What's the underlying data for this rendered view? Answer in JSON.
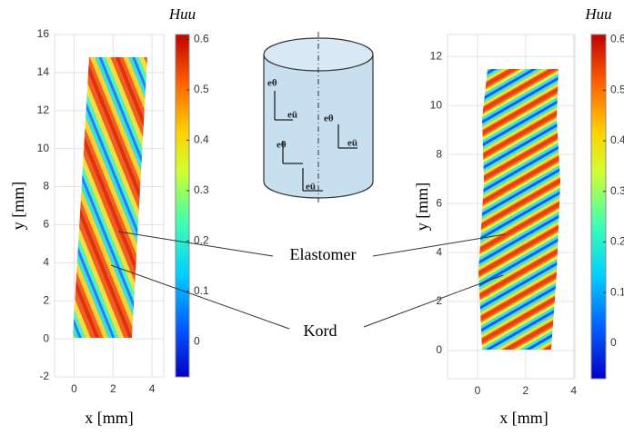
{
  "chart_data": [
    {
      "type": "heatmap",
      "xlabel": "x [mm]",
      "ylabel": "y [mm]",
      "xlim": [
        -1,
        4.6
      ],
      "xticks": [
        0,
        2,
        4
      ],
      "ylim": [
        -2,
        16
      ],
      "yticks": [
        -2,
        0,
        2,
        4,
        6,
        8,
        10,
        12,
        14,
        16
      ],
      "grid": true,
      "colorbar_label": "Huu",
      "clim": [
        -0.07,
        0.61
      ],
      "cticks": [
        0,
        0.1,
        0.2,
        0.3,
        0.4,
        0.5,
        0.6
      ]
    },
    {
      "type": "heatmap",
      "xlabel": "x [mm]",
      "ylabel": "y [mm]",
      "xlim": [
        -1.25,
        4.05
      ],
      "xticks": [
        0,
        2,
        4
      ],
      "ylim": [
        -1.15,
        12.9
      ],
      "yticks": [
        0,
        2,
        4,
        6,
        8,
        10,
        12
      ],
      "grid": true,
      "colorbar_label": "Huu",
      "clim": [
        -0.07,
        0.61
      ],
      "cticks": [
        0,
        0.1,
        0.2,
        0.3,
        0.4,
        0.5,
        0.6
      ]
    }
  ],
  "annotations": [
    "Elastomer",
    "Kord"
  ],
  "diagram_labels": [
    "eθ",
    "eū",
    "eθ",
    "eū",
    "eθ",
    "eū"
  ]
}
